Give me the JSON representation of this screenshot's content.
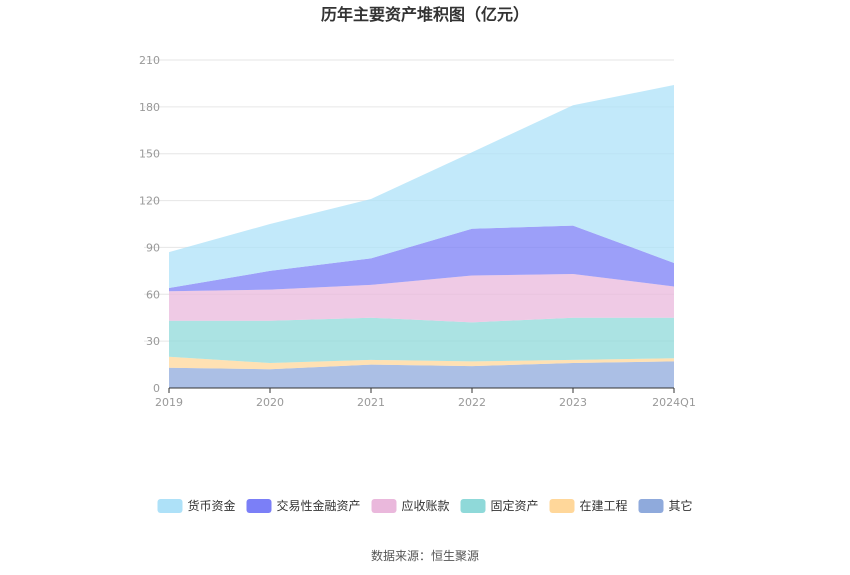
{
  "chart_data": {
    "type": "area",
    "stacked": true,
    "title": "历年主要资产堆积图（亿元）",
    "x": [
      "2019",
      "2020",
      "2021",
      "2022",
      "2023",
      "2024Q1"
    ],
    "ylim": [
      0,
      210
    ],
    "yticks": [
      0,
      30,
      60,
      90,
      120,
      150,
      180,
      210
    ],
    "grid": true,
    "legend_position": "bottom",
    "series": [
      {
        "name": "其它",
        "color": "#8faadc",
        "values": [
          13,
          12,
          15,
          14,
          16,
          17
        ]
      },
      {
        "name": "在建工程",
        "color": "#ffd79a",
        "values": [
          7,
          4,
          3,
          3,
          2,
          2
        ]
      },
      {
        "name": "固定资产",
        "color": "#8fd9d9",
        "values": [
          23,
          27,
          27,
          25,
          27,
          26
        ]
      },
      {
        "name": "应收账款",
        "color": "#eab8dc",
        "values": [
          19,
          20,
          21,
          30,
          28,
          20
        ]
      },
      {
        "name": "交易性金融资产",
        "color": "#7b7ff7",
        "values": [
          2,
          12,
          17,
          30,
          31,
          15
        ]
      },
      {
        "name": "货币资金",
        "color": "#aee1f8",
        "values": [
          23,
          30,
          38,
          49,
          77,
          114
        ]
      }
    ],
    "legend_order": [
      "货币资金",
      "交易性金融资产",
      "应收账款",
      "固定资产",
      "在建工程",
      "其它"
    ]
  },
  "source_text": "数据来源：恒生聚源"
}
